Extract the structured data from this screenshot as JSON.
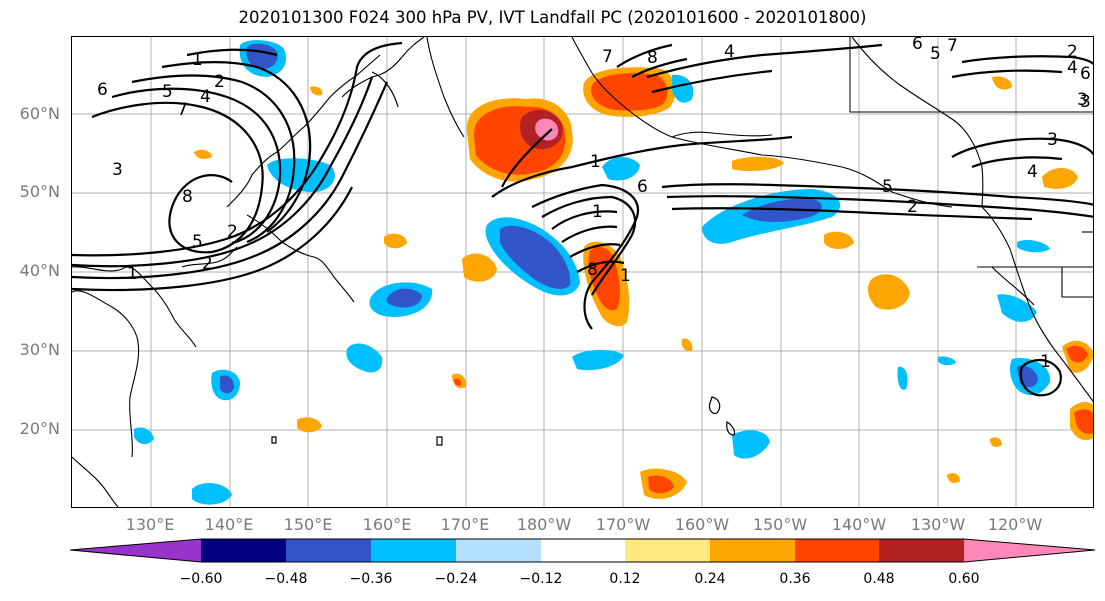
{
  "title": "2020101300 F024 300 hPa PV, IVT Landfall PC (2020101600 - 2020101800)",
  "lat_labels": [
    "60°N",
    "50°N",
    "40°N",
    "30°N",
    "20°N"
  ],
  "lon_labels": [
    "130°E",
    "140°E",
    "150°E",
    "160°E",
    "170°E",
    "180°W",
    "170°W",
    "160°W",
    "150°W",
    "140°W",
    "130°W",
    "120°W"
  ],
  "colorbar": {
    "colors": [
      "#9933cc",
      "#000080",
      "#3355cc",
      "#00bfff",
      "#b3e0ff",
      "#ffffff",
      "#ffe880",
      "#ffa500",
      "#ff4500",
      "#b22222",
      "#ff88b8"
    ],
    "tick_labels": [
      "−0.60",
      "−0.48",
      "−0.36",
      "−0.24",
      "−0.12",
      "0.12",
      "0.24",
      "0.36",
      "0.48",
      "0.60"
    ]
  },
  "contour_labels": [
    "1",
    "2",
    "6",
    "5",
    "4",
    "7",
    "8",
    "3",
    "1",
    "2",
    "5",
    "2",
    "1",
    "6",
    "5",
    "7",
    "4",
    "3",
    "4",
    "5",
    "2",
    "8",
    "1",
    "6",
    "3",
    "2",
    "7",
    "1",
    "4",
    "6",
    "3",
    "8",
    "1"
  ]
}
